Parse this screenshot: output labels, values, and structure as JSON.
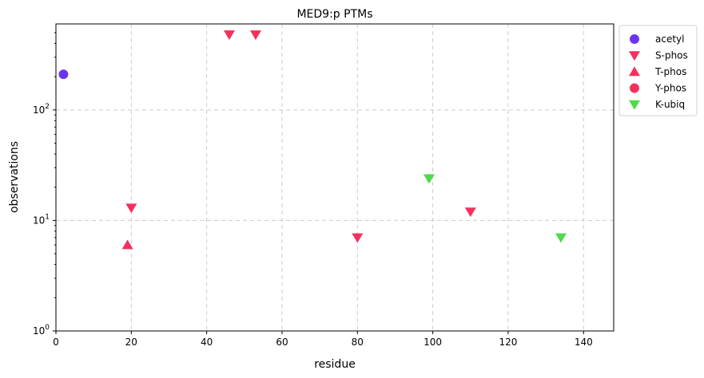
{
  "chart_data": {
    "type": "scatter",
    "title": "MED9:p PTMs",
    "xlabel": "residue",
    "ylabel": "observations",
    "xlim": [
      0,
      148
    ],
    "ylim": [
      1,
      600
    ],
    "yscale": "log",
    "grid": true,
    "legend_position": "outside-right-top",
    "x_ticks": [
      0,
      20,
      40,
      60,
      80,
      100,
      120,
      140
    ],
    "y_ticks": [
      {
        "value": 1,
        "base": "10",
        "exp": "0"
      },
      {
        "value": 10,
        "base": "10",
        "exp": "1"
      },
      {
        "value": 100,
        "base": "10",
        "exp": "2"
      }
    ],
    "series": [
      {
        "name": "acetyl",
        "marker": "circle",
        "color": "#6a35f0",
        "points": [
          {
            "x": 2,
            "y": 210
          }
        ]
      },
      {
        "name": "S-phos",
        "marker": "triangle-down",
        "color": "#f5305f",
        "points": [
          {
            "x": 20,
            "y": 13
          },
          {
            "x": 46,
            "y": 480
          },
          {
            "x": 53,
            "y": 480
          },
          {
            "x": 80,
            "y": 7
          },
          {
            "x": 110,
            "y": 12
          }
        ]
      },
      {
        "name": "T-phos",
        "marker": "triangle-up",
        "color": "#f5305f",
        "points": [
          {
            "x": 19,
            "y": 6
          }
        ]
      },
      {
        "name": "Y-phos",
        "marker": "circle",
        "color": "#f5305f",
        "points": []
      },
      {
        "name": "K-ubiq",
        "marker": "triangle-down",
        "color": "#50d94a",
        "points": [
          {
            "x": 99,
            "y": 24
          },
          {
            "x": 134,
            "y": 7
          }
        ]
      }
    ]
  }
}
